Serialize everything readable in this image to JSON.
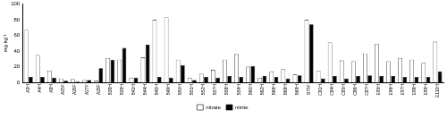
{
  "chart_data": {
    "type": "bar",
    "y_label": "mg kg⁻¹",
    "categories": [
      "A3H",
      "A4H",
      "A8H",
      "A25F",
      "A26F",
      "A27F",
      "A28F",
      "B38H",
      "B39H",
      "B41H",
      "B44H",
      "B45H",
      "B49H",
      "B50H",
      "B51H",
      "B52H",
      "B57H",
      "B58H",
      "B59H",
      "B60H",
      "B62H",
      "B66H",
      "B68H",
      "B69H",
      "B75F",
      "C81H",
      "C84H",
      "C85H",
      "C86H",
      "C87H",
      "E95H",
      "E96H",
      "E97H",
      "E98H",
      "E99H",
      "E110H"
    ],
    "series": [
      {
        "name": "nitrate",
        "color": "#ffffff",
        "values": [
          67,
          35,
          15,
          5,
          4,
          3,
          2,
          31,
          29,
          6,
          32,
          80,
          83,
          29,
          6,
          11,
          16,
          29,
          36,
          20,
          6,
          14,
          17,
          10,
          80,
          15,
          51,
          28,
          27,
          37,
          49,
          27,
          31,
          29,
          25,
          52
        ]
      },
      {
        "name": "nitrite",
        "color": "#000000",
        "values": [
          7,
          7,
          6,
          2,
          1,
          3,
          18,
          29,
          44,
          6,
          48,
          7,
          6,
          22,
          3,
          7,
          6,
          8,
          7,
          21,
          8,
          7,
          5,
          9,
          74,
          5,
          8,
          5,
          8,
          9,
          8,
          8,
          7,
          7,
          7,
          14
        ]
      }
    ],
    "ylim": [
      0,
      100
    ],
    "yticks": [
      0,
      20,
      40,
      60,
      80,
      100
    ],
    "grid": false,
    "legend": "bottom"
  }
}
